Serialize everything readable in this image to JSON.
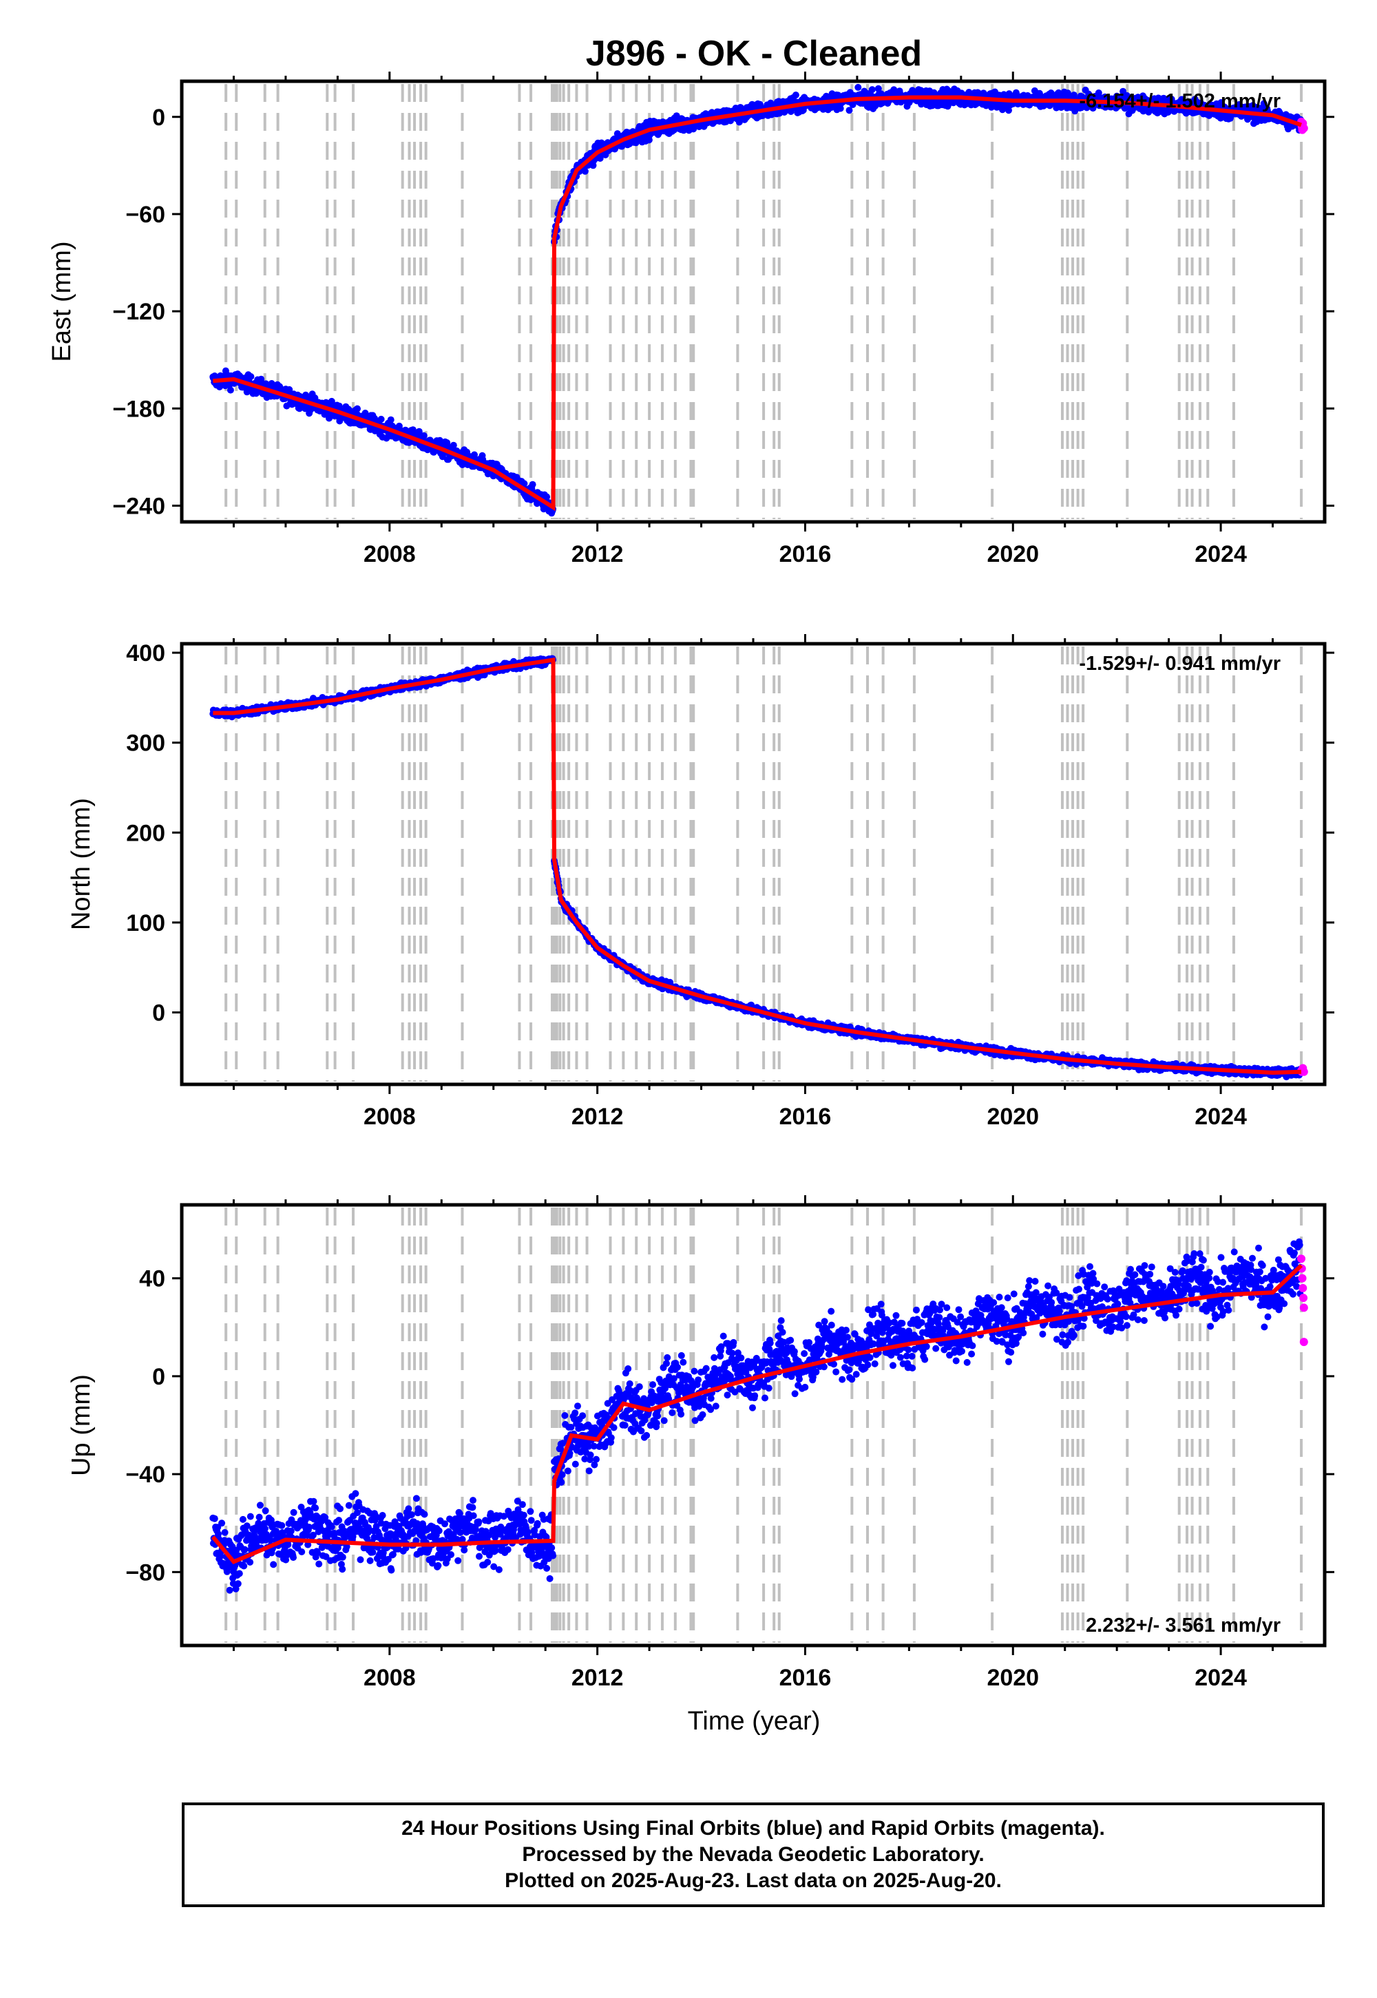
{
  "title": "J896  - OK - Cleaned",
  "xlabel": "Time (year)",
  "footer": {
    "line1": "24 Hour Positions Using Final Orbits (blue) and Rapid Orbits (magenta).",
    "line2": "Processed by the Nevada Geodetic Laboratory.",
    "line3": "Plotted on 2025-Aug-23. Last data on 2025-Aug-20."
  },
  "colors": {
    "final": "#0000ff",
    "rapid": "#ff00ff",
    "model": "#ff0000",
    "events": "#c0c0c0"
  },
  "chart_data": [
    {
      "type": "scatter",
      "ylabel": "East (mm)",
      "rate_label": "-6.154+/- 1.502 mm/yr",
      "xlim": [
        2004.0,
        2026.0
      ],
      "ylim": [
        -250,
        22
      ],
      "yticks": [
        0,
        -60,
        -120,
        -180,
        -240
      ],
      "xticks": [
        2008,
        2012,
        2016,
        2020,
        2024
      ],
      "noise": 2.5,
      "trend": [
        [
          2004.6,
          -163
        ],
        [
          2005.0,
          -162
        ],
        [
          2006.0,
          -172
        ],
        [
          2007.0,
          -182
        ],
        [
          2008.0,
          -193
        ],
        [
          2009.0,
          -205
        ],
        [
          2010.0,
          -218
        ],
        [
          2011.15,
          -241
        ],
        [
          2011.17,
          -75
        ],
        [
          2011.3,
          -55
        ],
        [
          2011.6,
          -33
        ],
        [
          2012.0,
          -22
        ],
        [
          2012.5,
          -14
        ],
        [
          2013.0,
          -8
        ],
        [
          2014.0,
          -2
        ],
        [
          2015.0,
          3
        ],
        [
          2016.0,
          8
        ],
        [
          2017.0,
          11
        ],
        [
          2018.0,
          12
        ],
        [
          2019.0,
          12
        ],
        [
          2020.0,
          10
        ],
        [
          2021.0,
          10
        ],
        [
          2022.0,
          9
        ],
        [
          2023.0,
          7
        ],
        [
          2024.0,
          4
        ],
        [
          2025.0,
          1
        ],
        [
          2025.55,
          -5
        ]
      ],
      "rapid": [
        [
          2025.55,
          -3
        ],
        [
          2025.56,
          -6
        ],
        [
          2025.57,
          -8
        ],
        [
          2025.58,
          -4
        ],
        [
          2025.6,
          -7
        ]
      ]
    },
    {
      "type": "scatter",
      "ylabel": "North (mm)",
      "rate_label": "-1.529+/- 0.941 mm/yr",
      "xlim": [
        2004.0,
        2026.0
      ],
      "ylim": [
        -80,
        410
      ],
      "yticks": [
        400,
        300,
        200,
        100,
        0
      ],
      "xticks": [
        2008,
        2012,
        2016,
        2020,
        2024
      ],
      "noise": 2.0,
      "trend": [
        [
          2004.6,
          333
        ],
        [
          2005.0,
          333
        ],
        [
          2006.0,
          340
        ],
        [
          2007.0,
          348
        ],
        [
          2008.0,
          360
        ],
        [
          2009.0,
          370
        ],
        [
          2010.0,
          382
        ],
        [
          2011.15,
          392
        ],
        [
          2011.17,
          170
        ],
        [
          2011.3,
          125
        ],
        [
          2011.6,
          100
        ],
        [
          2012.0,
          72
        ],
        [
          2012.5,
          52
        ],
        [
          2013.0,
          35
        ],
        [
          2014.0,
          18
        ],
        [
          2015.0,
          3
        ],
        [
          2016.0,
          -12
        ],
        [
          2017.0,
          -22
        ],
        [
          2018.0,
          -30
        ],
        [
          2019.0,
          -38
        ],
        [
          2020.0,
          -45
        ],
        [
          2021.0,
          -52
        ],
        [
          2022.0,
          -57
        ],
        [
          2023.0,
          -61
        ],
        [
          2024.0,
          -64
        ],
        [
          2025.0,
          -67
        ],
        [
          2025.55,
          -66
        ]
      ],
      "rapid": [
        [
          2025.55,
          -65
        ],
        [
          2025.56,
          -66
        ],
        [
          2025.57,
          -64
        ],
        [
          2025.58,
          -62
        ],
        [
          2025.6,
          -66
        ]
      ]
    },
    {
      "type": "scatter",
      "ylabel": "Up (mm)",
      "rate_label": "2.232+/- 3.561 mm/yr",
      "xlim": [
        2004.0,
        2026.0
      ],
      "ylim": [
        -110,
        70
      ],
      "yticks": [
        40,
        0,
        -40,
        -80
      ],
      "xticks": [
        2008,
        2012,
        2016,
        2020,
        2024
      ],
      "noise": 5.5,
      "seasonal": 4,
      "trend": [
        [
          2004.6,
          -68
        ],
        [
          2005.0,
          -72
        ],
        [
          2006.0,
          -63
        ],
        [
          2007.0,
          -64
        ],
        [
          2008.0,
          -65
        ],
        [
          2009.0,
          -65
        ],
        [
          2010.0,
          -64
        ],
        [
          2011.15,
          -66
        ],
        [
          2011.17,
          -42
        ],
        [
          2011.5,
          -28
        ],
        [
          2012.0,
          -22
        ],
        [
          2012.5,
          -15
        ],
        [
          2013.0,
          -10
        ],
        [
          2014.0,
          -3
        ],
        [
          2015.0,
          3
        ],
        [
          2016.0,
          8
        ],
        [
          2017.0,
          13
        ],
        [
          2018.0,
          17
        ],
        [
          2019.0,
          20
        ],
        [
          2020.0,
          24
        ],
        [
          2021.0,
          28
        ],
        [
          2022.0,
          31
        ],
        [
          2023.0,
          34
        ],
        [
          2024.0,
          37
        ],
        [
          2025.0,
          38
        ],
        [
          2025.55,
          42
        ]
      ],
      "rapid": [
        [
          2025.55,
          48
        ],
        [
          2025.56,
          44
        ],
        [
          2025.57,
          40
        ],
        [
          2025.58,
          36
        ],
        [
          2025.59,
          32
        ],
        [
          2025.6,
          28
        ],
        [
          2025.6,
          14
        ]
      ]
    }
  ],
  "event_years": [
    2004.85,
    2005.05,
    2005.6,
    2005.85,
    2006.8,
    2006.95,
    2007.3,
    2008.25,
    2008.38,
    2008.48,
    2008.6,
    2008.7,
    2009.4,
    2010.5,
    2010.72,
    2011.13,
    2011.18,
    2011.22,
    2011.28,
    2011.35,
    2011.45,
    2011.6,
    2011.8,
    2012.25,
    2012.5,
    2012.75,
    2013.0,
    2013.25,
    2013.5,
    2013.8,
    2013.85,
    2014.7,
    2015.2,
    2015.4,
    2015.5,
    2016.9,
    2017.2,
    2017.5,
    2018.1,
    2019.6,
    2020.95,
    2021.05,
    2021.15,
    2021.25,
    2021.35,
    2022.2,
    2023.2,
    2023.35,
    2023.45,
    2023.6,
    2023.75,
    2024.25,
    2025.55
  ]
}
